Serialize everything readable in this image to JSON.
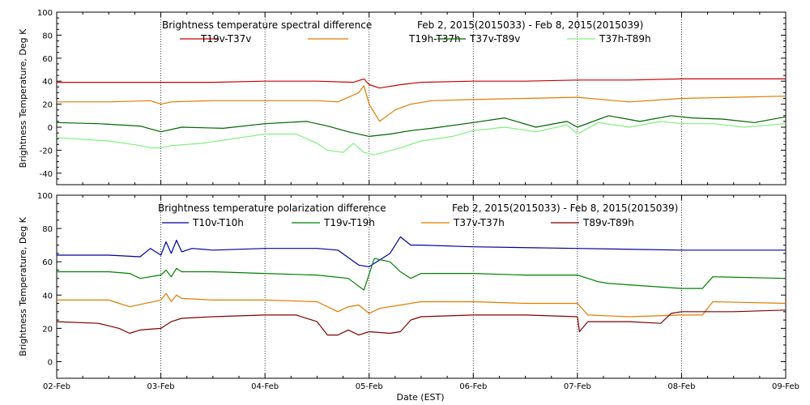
{
  "xlabel": "Date (EST)",
  "chart_data": [
    {
      "type": "line",
      "title": "Brightness temperature spectral difference",
      "subtitle": "Feb  2, 2015(2015033) - Feb  8, 2015(2015039)",
      "ylabel": "Brightness Temperature, Deg K",
      "ylim": [
        -50,
        100
      ],
      "yticks": [
        -40,
        -20,
        0,
        20,
        40,
        60,
        80,
        100
      ],
      "xlim": [
        0,
        7
      ],
      "grid": "vertical dotted at day boundaries",
      "legend": "top, single row",
      "series": [
        {
          "name": "T19v-T37v",
          "color": "#cc0000",
          "x": [
            0,
            0.5,
            1.0,
            1.5,
            2.0,
            2.5,
            2.85,
            2.95,
            3.0,
            3.1,
            3.3,
            3.5,
            4.0,
            4.5,
            5.0,
            5.5,
            6.0,
            6.5,
            7.0
          ],
          "y": [
            39,
            39,
            39,
            39,
            40,
            40,
            39,
            42,
            37,
            34,
            37,
            39,
            40,
            40,
            41,
            41,
            42,
            42,
            42
          ]
        },
        {
          "name": "T19h-T37h",
          "color": "#e07b00",
          "x": [
            0,
            0.5,
            0.9,
            1.0,
            1.1,
            1.5,
            2.0,
            2.5,
            2.7,
            2.9,
            2.95,
            3.0,
            3.1,
            3.25,
            3.4,
            3.6,
            4.0,
            4.5,
            5.0,
            5.5,
            6.0,
            6.5,
            7.0
          ],
          "y": [
            22,
            22,
            23,
            20,
            22,
            23,
            23,
            23,
            22,
            30,
            36,
            20,
            5,
            15,
            20,
            23,
            24,
            25,
            26,
            22,
            25,
            26,
            27
          ]
        },
        {
          "name": "T37v-T89v",
          "color": "#006400",
          "x": [
            0,
            0.4,
            0.8,
            1.0,
            1.2,
            1.6,
            2.0,
            2.4,
            2.6,
            2.8,
            3.0,
            3.2,
            3.4,
            3.6,
            4.0,
            4.3,
            4.6,
            4.9,
            5.0,
            5.3,
            5.6,
            5.9,
            6.1,
            6.4,
            6.7,
            7.0
          ],
          "y": [
            4,
            3,
            1,
            -4,
            0,
            -1,
            3,
            5,
            1,
            -4,
            -8,
            -6,
            -3,
            -1,
            4,
            8,
            0,
            5,
            0,
            10,
            5,
            10,
            8,
            7,
            4,
            9
          ]
        },
        {
          "name": "T37h-T89h",
          "color": "#80f080",
          "x": [
            0,
            0.5,
            0.8,
            0.9,
            1.0,
            1.1,
            1.4,
            1.7,
            2.0,
            2.3,
            2.5,
            2.6,
            2.75,
            2.85,
            2.95,
            3.05,
            3.3,
            3.5,
            3.8,
            4.0,
            4.3,
            4.6,
            4.9,
            5.0,
            5.2,
            5.5,
            5.8,
            6.0,
            6.3,
            6.6,
            7.0
          ],
          "y": [
            -9,
            -12,
            -16,
            -18,
            -18,
            -16,
            -14,
            -10,
            -6,
            -6,
            -14,
            -20,
            -22,
            -14,
            -22,
            -24,
            -18,
            -12,
            -8,
            -3,
            0,
            -4,
            2,
            -6,
            4,
            0,
            5,
            3,
            3,
            0,
            3
          ]
        }
      ]
    },
    {
      "type": "line",
      "title": "Brightness temperature polarization difference",
      "subtitle": "Feb  2, 2015(2015033) - Feb  8, 2015(2015039)",
      "ylabel": "Brightness Temperature, Deg K",
      "ylim": [
        -10,
        100
      ],
      "yticks": [
        0,
        20,
        40,
        60,
        80,
        100
      ],
      "xlim": [
        0,
        7
      ],
      "grid": "vertical dotted at day boundaries",
      "legend": "top, single row",
      "series": [
        {
          "name": "T10v-T10h",
          "color": "#0000a0",
          "x": [
            0,
            0.5,
            0.8,
            0.9,
            1.0,
            1.05,
            1.1,
            1.15,
            1.2,
            1.3,
            1.5,
            2.0,
            2.5,
            2.7,
            2.9,
            3.0,
            3.2,
            3.3,
            3.4,
            3.5,
            4.0,
            5.0,
            6.0,
            7.0
          ],
          "y": [
            64,
            64,
            63,
            68,
            64,
            72,
            65,
            73,
            66,
            68,
            67,
            68,
            68,
            67,
            58,
            57,
            65,
            75,
            70,
            70,
            69,
            68,
            67,
            67
          ]
        },
        {
          "name": "T19v-T19h",
          "color": "#008000",
          "x": [
            0,
            0.5,
            0.7,
            0.8,
            1.0,
            1.05,
            1.1,
            1.15,
            1.2,
            1.5,
            2.0,
            2.5,
            2.8,
            2.95,
            3.05,
            3.2,
            3.3,
            3.4,
            3.5,
            4.0,
            4.5,
            5.0,
            5.2,
            5.3,
            6.0,
            6.2,
            6.3,
            7.0
          ],
          "y": [
            54,
            54,
            53,
            50,
            52,
            55,
            51,
            56,
            54,
            54,
            53,
            52,
            50,
            43,
            62,
            60,
            54,
            50,
            53,
            53,
            52,
            52,
            48,
            47,
            44,
            44,
            51,
            50
          ]
        },
        {
          "name": "T37v-T37h",
          "color": "#e07b00",
          "x": [
            0,
            0.5,
            0.6,
            0.7,
            1.0,
            1.05,
            1.1,
            1.15,
            1.2,
            1.5,
            2.0,
            2.5,
            2.6,
            2.7,
            2.8,
            2.9,
            3.0,
            3.1,
            3.3,
            3.5,
            4.0,
            4.5,
            5.0,
            5.1,
            5.5,
            6.0,
            6.2,
            6.3,
            7.0
          ],
          "y": [
            37,
            37,
            35,
            33,
            37,
            41,
            36,
            40,
            38,
            37,
            37,
            36,
            33,
            30,
            33,
            34,
            29,
            32,
            34,
            36,
            36,
            35,
            35,
            28,
            27,
            28,
            28,
            36,
            35
          ]
        },
        {
          "name": "T89v-T89h",
          "color": "#800000",
          "x": [
            0,
            0.4,
            0.6,
            0.7,
            0.8,
            1.0,
            1.1,
            1.2,
            1.5,
            2.0,
            2.3,
            2.5,
            2.6,
            2.7,
            2.8,
            2.9,
            3.0,
            3.2,
            3.3,
            3.4,
            3.5,
            4.0,
            4.5,
            5.0,
            5.02,
            5.1,
            5.5,
            5.8,
            5.9,
            6.0,
            6.5,
            7.0
          ],
          "y": [
            24,
            23,
            20,
            17,
            19,
            20,
            24,
            26,
            27,
            28,
            28,
            24,
            16,
            16,
            19,
            16,
            18,
            17,
            18,
            25,
            27,
            28,
            28,
            27,
            18,
            24,
            24,
            23,
            29,
            30,
            30,
            31
          ]
        }
      ]
    }
  ],
  "xtick_labels": [
    "02-Feb",
    "03-Feb",
    "04-Feb",
    "05-Feb",
    "06-Feb",
    "07-Feb",
    "08-Feb",
    "09-Feb"
  ]
}
